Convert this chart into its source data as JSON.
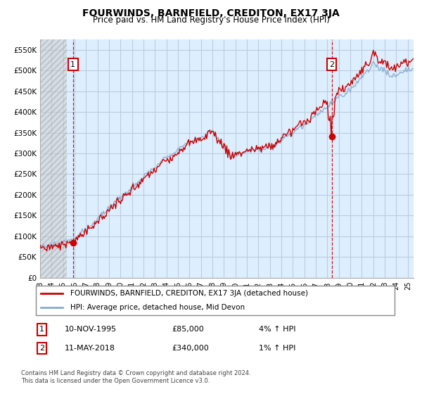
{
  "title": "FOURWINDS, BARNFIELD, CREDITON, EX17 3JA",
  "subtitle": "Price paid vs. HM Land Registry's House Price Index (HPI)",
  "legend_line1": "FOURWINDS, BARNFIELD, CREDITON, EX17 3JA (detached house)",
  "legend_line2": "HPI: Average price, detached house, Mid Devon",
  "footer": "Contains HM Land Registry data © Crown copyright and database right 2024.\nThis data is licensed under the Open Government Licence v3.0.",
  "sale1_date": "10-NOV-1995",
  "sale1_price": "£85,000",
  "sale1_hpi": "4% ↑ HPI",
  "sale2_date": "11-MAY-2018",
  "sale2_price": "£340,000",
  "sale2_hpi": "1% ↑ HPI",
  "sale1_x": 1995.86,
  "sale1_y": 85000,
  "sale2_x": 2018.37,
  "sale2_y": 340000,
  "ylim": [
    0,
    575000
  ],
  "xlim": [
    1993.0,
    2025.5
  ],
  "yticks": [
    0,
    50000,
    100000,
    150000,
    200000,
    250000,
    300000,
    350000,
    400000,
    450000,
    500000,
    550000
  ],
  "ytick_labels": [
    "£0",
    "£50K",
    "£100K",
    "£150K",
    "£200K",
    "£250K",
    "£300K",
    "£350K",
    "£400K",
    "£450K",
    "£500K",
    "£550K"
  ],
  "xticks": [
    1993,
    1994,
    1995,
    1996,
    1997,
    1998,
    1999,
    2000,
    2001,
    2002,
    2003,
    2004,
    2005,
    2006,
    2007,
    2008,
    2009,
    2010,
    2011,
    2012,
    2013,
    2014,
    2015,
    2016,
    2017,
    2018,
    2019,
    2020,
    2021,
    2022,
    2023,
    2024,
    2025
  ],
  "red_color": "#cc0000",
  "blue_color": "#88aacc",
  "grid_color": "#bbccdd",
  "bg_color": "#ddeeff",
  "hatch_color": "#aaaaaa"
}
